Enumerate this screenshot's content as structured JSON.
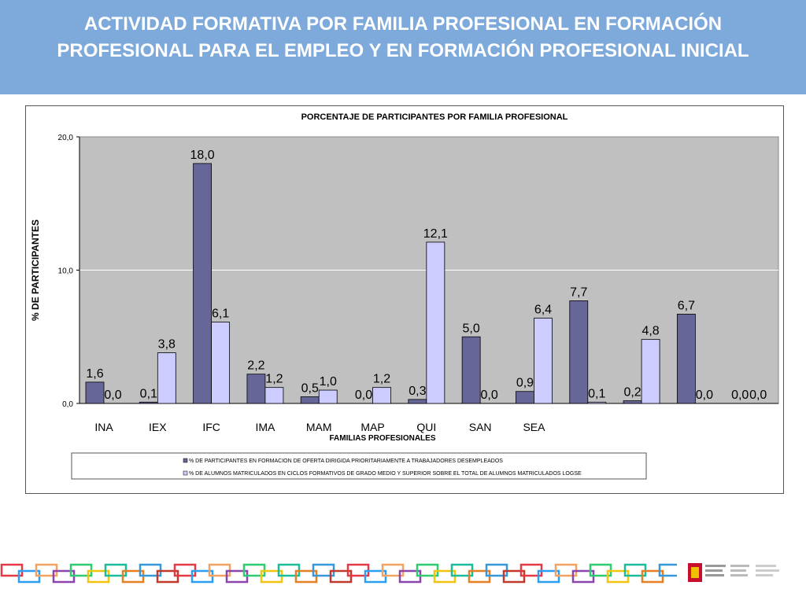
{
  "header": {
    "title_line1": "ACTIVIDAD FORMATIVA POR FAMILIA PROFESIONAL EN FORMACIÓN",
    "title_line2": "PROFESIONAL PARA EL EMPLEO Y EN FORMACIÓN PROFESIONAL INICIAL"
  },
  "colors": {
    "banner": "#7eaadb",
    "series1": "#666699",
    "series2": "#ccccff",
    "plot_bg": "#c0c0c0"
  },
  "chart_data": {
    "type": "bar",
    "title": "PORCENTAJE  DE  PARTICIPANTES  POR  FAMILIA  PROFESIONAL",
    "xlabel": "FAMILIAS PROFESIONALES",
    "ylabel": "% DE PARTICIPANTES",
    "ylim": [
      0,
      20
    ],
    "yticks": [
      "0,0",
      "10,0",
      "20,0"
    ],
    "grid": true,
    "legend_position": "bottom",
    "categories": [
      "INA",
      "IEX",
      "IFC",
      "IMA",
      "MAM",
      "MAP",
      "QUI",
      "SAN",
      "SEA",
      "",
      "",
      "",
      ""
    ],
    "series": [
      {
        "name": "% DE PARTICIPANTES EN FORMACION DE OFERTA DIRIGIDA PRIORITARIAMENTE A TRABAJADORES DESEMPLEADOS",
        "values": [
          1.6,
          0.1,
          18.0,
          2.2,
          0.5,
          0.0,
          0.3,
          5.0,
          0.9,
          7.7,
          0.2,
          6.7,
          0.0
        ],
        "labels": [
          "1,6",
          "0,1",
          "18,0",
          "2,2",
          "0,5",
          "0,0",
          "0,3",
          "5,0",
          "0,9",
          "7,7",
          "0,2",
          "6,7",
          "0,0"
        ]
      },
      {
        "name": "% DE ALUMNOS MATRICULADOS EN CICLOS FORMATIVOS DE GRADO MEDIO Y SUPERIOR SOBRE EL TOTAL DE ALUMNOS MATRICULADOS LOGSE",
        "values": [
          0.0,
          3.8,
          6.1,
          1.2,
          1.0,
          1.2,
          12.1,
          0.0,
          6.4,
          0.1,
          4.8,
          0.0,
          0.0
        ],
        "labels": [
          "0,0",
          "3,8",
          "6,1",
          "1,2",
          "1,0",
          "1,2",
          "12,1",
          "0,0",
          "6,4",
          "0,1",
          "4,8",
          "0,0",
          "0,0"
        ]
      }
    ]
  }
}
